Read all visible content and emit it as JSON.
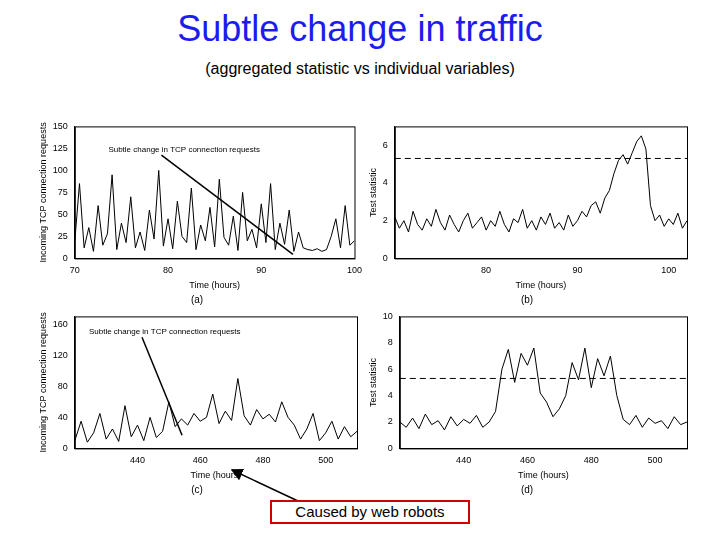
{
  "title": "Subtle change in traffic",
  "subtitle": "(aggregated statistic vs individual variables)",
  "callout": "Caused by web robots",
  "chart_data": [
    {
      "type": "line",
      "title": "(a)",
      "xlabel": "Time (hours)",
      "ylabel": "Incoming TCP connection requests",
      "color": "#000000",
      "annotations": [
        {
          "text": "Subtle change in TCP connection requests"
        }
      ],
      "xlim": [
        70,
        100
      ],
      "xticks": [
        70,
        80,
        90,
        100
      ],
      "ylim": [
        0,
        150
      ],
      "yticks": [
        0,
        25,
        50,
        75,
        100,
        125,
        150
      ],
      "x": [
        70,
        70.5,
        71,
        71.5,
        72,
        72.5,
        73,
        73.5,
        74,
        74.5,
        75,
        75.5,
        76,
        76.5,
        77,
        77.5,
        78,
        78.5,
        79,
        79.5,
        80,
        80.5,
        81,
        81.5,
        82,
        82.5,
        83,
        83.5,
        84,
        84.5,
        85,
        85.5,
        86,
        86.5,
        87,
        87.5,
        88,
        88.5,
        89,
        89.5,
        90,
        90.5,
        91,
        91.5,
        92,
        92.5,
        93,
        93.5,
        94,
        94.5,
        95,
        95.5,
        96,
        96.5,
        97,
        97.5,
        98,
        98.5,
        99,
        99.5,
        100
      ],
      "values": [
        20,
        85,
        12,
        35,
        8,
        60,
        15,
        28,
        95,
        10,
        40,
        18,
        70,
        12,
        30,
        9,
        55,
        22,
        100,
        14,
        45,
        11,
        65,
        25,
        18,
        80,
        10,
        38,
        20,
        58,
        13,
        90,
        24,
        15,
        48,
        9,
        75,
        20,
        33,
        12,
        62,
        18,
        85,
        10,
        40,
        16,
        55,
        8,
        30,
        12,
        10,
        9,
        11,
        8,
        10,
        25,
        45,
        12,
        60,
        15,
        20
      ]
    },
    {
      "type": "line",
      "title": "(b)",
      "xlabel": "Time (hours)",
      "ylabel": "Test statistic",
      "color": "#000000",
      "threshold": 5.3,
      "xlim": [
        70,
        102
      ],
      "xticks": [
        80,
        90,
        100
      ],
      "ylim": [
        0,
        7
      ],
      "yticks": [
        0,
        2,
        4,
        6
      ],
      "x": [
        70,
        70.5,
        71,
        71.5,
        72,
        72.5,
        73,
        73.5,
        74,
        74.5,
        75,
        75.5,
        76,
        76.5,
        77,
        77.5,
        78,
        78.5,
        79,
        79.5,
        80,
        80.5,
        81,
        81.5,
        82,
        82.5,
        83,
        83.5,
        84,
        84.5,
        85,
        85.5,
        86,
        86.5,
        87,
        87.5,
        88,
        88.5,
        89,
        89.5,
        90,
        90.5,
        91,
        91.5,
        92,
        92.5,
        93,
        93.5,
        94,
        94.5,
        95,
        95.5,
        96,
        96.5,
        97,
        97.5,
        98,
        98.5,
        99,
        99.5,
        100,
        100.5,
        101,
        101.5,
        102
      ],
      "values": [
        2.2,
        1.6,
        2.0,
        1.4,
        2.5,
        1.8,
        1.5,
        2.1,
        1.7,
        2.6,
        1.9,
        1.5,
        2.3,
        1.8,
        1.4,
        2.0,
        2.4,
        1.6,
        1.9,
        2.2,
        1.5,
        2.0,
        1.7,
        2.5,
        1.8,
        1.4,
        2.1,
        1.9,
        2.6,
        1.6,
        2.0,
        1.5,
        2.2,
        1.8,
        2.4,
        1.6,
        1.9,
        1.5,
        2.3,
        1.7,
        2.0,
        2.5,
        2.2,
        2.8,
        3.0,
        2.4,
        3.2,
        3.6,
        4.5,
        5.2,
        5.5,
        5.0,
        5.6,
        6.2,
        6.5,
        5.8,
        2.8,
        2.0,
        2.3,
        1.7,
        2.1,
        1.8,
        2.4,
        1.6,
        2.0
      ]
    },
    {
      "type": "line",
      "title": "(c)",
      "xlabel": "Time (hours)",
      "ylabel": "Incoming TCP connection requests",
      "color": "#000000",
      "annotations": [
        {
          "text": "Subtle change in TCP connection requests"
        }
      ],
      "xlim": [
        420,
        510
      ],
      "xticks": [
        440,
        460,
        480,
        500
      ],
      "ylim": [
        0,
        170
      ],
      "yticks": [
        0,
        40,
        80,
        120,
        160
      ],
      "x": [
        420,
        422,
        424,
        426,
        428,
        430,
        432,
        434,
        436,
        438,
        440,
        442,
        444,
        446,
        448,
        450,
        452,
        454,
        456,
        458,
        460,
        462,
        464,
        466,
        468,
        470,
        472,
        474,
        476,
        478,
        480,
        482,
        484,
        486,
        488,
        490,
        492,
        494,
        496,
        498,
        500,
        502,
        504,
        506,
        508,
        510
      ],
      "values": [
        10,
        35,
        8,
        20,
        45,
        12,
        25,
        9,
        55,
        15,
        30,
        10,
        40,
        14,
        22,
        60,
        28,
        38,
        30,
        45,
        35,
        40,
        70,
        32,
        48,
        36,
        90,
        42,
        30,
        50,
        38,
        44,
        34,
        60,
        40,
        30,
        12,
        25,
        45,
        10,
        20,
        35,
        12,
        28,
        15,
        22
      ]
    },
    {
      "type": "line",
      "title": "(d)",
      "xlabel": "Time (hours)",
      "ylabel": "Test statistic",
      "color": "#000000",
      "threshold": 5.3,
      "xlim": [
        420,
        510
      ],
      "xticks": [
        440,
        460,
        480,
        500
      ],
      "ylim": [
        0,
        10
      ],
      "yticks": [
        0,
        2,
        4,
        6,
        8,
        10
      ],
      "x": [
        420,
        422,
        424,
        426,
        428,
        430,
        432,
        434,
        436,
        438,
        440,
        442,
        444,
        446,
        448,
        450,
        452,
        454,
        456,
        458,
        460,
        462,
        464,
        466,
        468,
        470,
        472,
        474,
        476,
        478,
        480,
        482,
        484,
        486,
        488,
        490,
        492,
        494,
        496,
        498,
        500,
        502,
        504,
        506,
        508,
        510
      ],
      "values": [
        2.0,
        1.6,
        2.3,
        1.5,
        2.6,
        1.8,
        2.1,
        1.4,
        2.4,
        1.7,
        2.2,
        1.9,
        2.5,
        1.6,
        2.0,
        2.8,
        6.0,
        7.5,
        5.0,
        7.2,
        6.3,
        7.6,
        4.2,
        3.5,
        2.4,
        3.0,
        4.0,
        6.5,
        5.2,
        7.6,
        4.6,
        6.8,
        5.5,
        7.0,
        4.0,
        2.2,
        1.8,
        2.5,
        1.6,
        2.3,
        1.9,
        2.1,
        1.5,
        2.4,
        1.8,
        2.0
      ]
    }
  ]
}
